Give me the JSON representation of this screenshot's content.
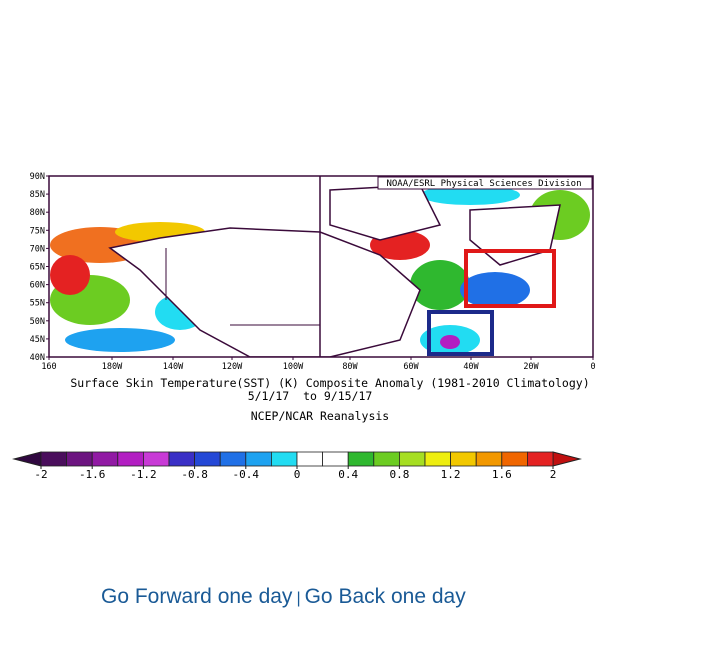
{
  "map": {
    "credit": "NOAA/ESRL Physical Sciences Division",
    "lat_labels": [
      "90N",
      "85N",
      "80N",
      "75N",
      "70N",
      "65N",
      "60N",
      "55N",
      "50N",
      "45N",
      "40N"
    ],
    "lon_labels": [
      "160",
      "180W",
      "140W",
      "120W",
      "100W",
      "80W",
      "60W",
      "40W",
      "20W",
      "0"
    ]
  },
  "caption": {
    "title": "Surface Skin Temperature(SST) (K) Composite Anomaly (1981-2010 Climatology)",
    "dates": "5/1/17  to 9/15/17",
    "source": "NCEP/NCAR Reanalysis"
  },
  "colorbar": {
    "lim": [
      -2,
      2
    ],
    "ticks": [
      -2,
      -1.6,
      -1.2,
      -0.8,
      -0.4,
      0,
      0.4,
      0.8,
      1.2,
      1.6,
      2
    ],
    "colors": [
      "#4a0e5c",
      "#6c1480",
      "#911aa4",
      "#b21ec2",
      "#c83ad6",
      "#3a2fc6",
      "#2448d6",
      "#2070e6",
      "#1ea2f0",
      "#22dcf2",
      "#ffffff",
      "#ffffff",
      "#2fb82f",
      "#6ccc22",
      "#a6de22",
      "#eeee10",
      "#f2c800",
      "#f29800",
      "#f06600",
      "#e42222"
    ],
    "under_color": "#300840",
    "over_color": "#c01010"
  },
  "links": {
    "forward": "Go Forward one day",
    "separator": "|",
    "back": "Go Back one day"
  }
}
